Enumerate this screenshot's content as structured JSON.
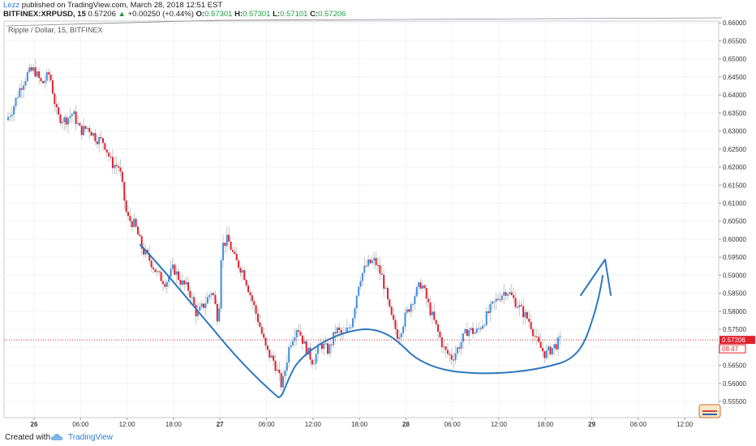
{
  "header": {
    "author": "Lezz",
    "published": " published on TradingView.com, March 28, 2018 12:51 EST",
    "symbol": "BITFINEX:XRPUSD, 15",
    "last": "0.57206",
    "change": "+0.00250 (+0.44%)",
    "o_label": "O:",
    "o_value": "0.57301",
    "h_label": "H:",
    "h_value": "0.57301",
    "l_label": "L:",
    "l_value": "0.57101",
    "c_label": "C:",
    "c_value": "0.57206"
  },
  "footer": {
    "created": "Created with",
    "brand": "TradingView"
  },
  "colors": {
    "up": "#3d8fe0",
    "down": "#e0202c",
    "drawing": "#2e78bd",
    "price_line": "#e0202c",
    "grid": "#f0f3fa",
    "axis_text": "#333333"
  },
  "chart_data": {
    "type": "candlestick",
    "title": "Ripple / Dollar, 15, BITFINEX",
    "ylim": [
      0.5505,
      0.6605
    ],
    "y_ticks": [
      "0.55500",
      "0.56000",
      "0.56500",
      "0.57000",
      "0.57500",
      "0.58000",
      "0.58500",
      "0.59000",
      "0.59500",
      "0.60000",
      "0.60500",
      "0.61000",
      "0.61500",
      "0.62000",
      "0.62500",
      "0.63000",
      "0.63500",
      "0.64000",
      "0.64500",
      "0.65000",
      "0.65500",
      "0.66000"
    ],
    "x_ticks": [
      {
        "label": "26",
        "t": 0,
        "bold": true
      },
      {
        "label": "06:00",
        "t": 6
      },
      {
        "label": "12:00",
        "t": 12
      },
      {
        "label": "18:00",
        "t": 18
      },
      {
        "label": "27",
        "t": 24,
        "bold": true
      },
      {
        "label": "06:00",
        "t": 30
      },
      {
        "label": "12:00",
        "t": 36
      },
      {
        "label": "18:00",
        "t": 42
      },
      {
        "label": "28",
        "t": 48,
        "bold": true
      },
      {
        "label": "06:00",
        "t": 54
      },
      {
        "label": "12:00",
        "t": 60
      },
      {
        "label": "18:00",
        "t": 66
      },
      {
        "label": "29",
        "t": 72,
        "bold": true
      },
      {
        "label": "06:00",
        "t": 78
      },
      {
        "label": "12:00",
        "t": 84
      }
    ],
    "last_price": "0.57206",
    "countdown": "08:47",
    "price_path": [
      [
        -3.6,
        0.633
      ],
      [
        -2.8,
        0.636
      ],
      [
        -1.8,
        0.642
      ],
      [
        -0.8,
        0.646
      ],
      [
        0,
        0.647
      ],
      [
        1,
        0.643
      ],
      [
        2,
        0.646
      ],
      [
        3,
        0.634
      ],
      [
        4,
        0.633
      ],
      [
        5,
        0.635
      ],
      [
        6,
        0.63
      ],
      [
        7,
        0.631
      ],
      [
        8,
        0.628
      ],
      [
        9,
        0.627
      ],
      [
        10,
        0.621
      ],
      [
        11,
        0.62
      ],
      [
        12,
        0.606
      ],
      [
        13,
        0.604
      ],
      [
        14,
        0.597
      ],
      [
        15,
        0.594
      ],
      [
        16,
        0.59
      ],
      [
        17,
        0.588
      ],
      [
        18,
        0.592
      ],
      [
        19,
        0.588
      ],
      [
        20,
        0.586
      ],
      [
        21,
        0.579
      ],
      [
        22,
        0.582
      ],
      [
        23,
        0.586
      ],
      [
        23.8,
        0.577
      ],
      [
        24.2,
        0.598
      ],
      [
        25,
        0.6
      ],
      [
        26,
        0.594
      ],
      [
        27,
        0.591
      ],
      [
        28,
        0.584
      ],
      [
        29,
        0.577
      ],
      [
        30,
        0.569
      ],
      [
        31,
        0.566
      ],
      [
        32,
        0.559
      ],
      [
        33,
        0.571
      ],
      [
        34,
        0.576
      ],
      [
        35,
        0.57
      ],
      [
        36,
        0.566
      ],
      [
        37,
        0.571
      ],
      [
        38,
        0.569
      ],
      [
        39,
        0.575
      ],
      [
        40,
        0.573
      ],
      [
        41,
        0.577
      ],
      [
        42,
        0.589
      ],
      [
        43,
        0.593
      ],
      [
        44,
        0.594
      ],
      [
        45,
        0.589
      ],
      [
        46,
        0.579
      ],
      [
        47,
        0.573
      ],
      [
        48,
        0.579
      ],
      [
        49,
        0.584
      ],
      [
        50,
        0.588
      ],
      [
        51,
        0.581
      ],
      [
        52,
        0.575
      ],
      [
        53,
        0.569
      ],
      [
        54,
        0.567
      ],
      [
        55,
        0.571
      ],
      [
        56,
        0.575
      ],
      [
        57,
        0.574
      ],
      [
        58,
        0.577
      ],
      [
        59,
        0.581
      ],
      [
        60,
        0.584
      ],
      [
        61,
        0.586
      ],
      [
        62,
        0.583
      ],
      [
        63,
        0.58
      ],
      [
        64,
        0.577
      ],
      [
        65,
        0.571
      ],
      [
        66,
        0.568
      ],
      [
        67,
        0.57
      ],
      [
        68,
        0.572
      ]
    ]
  }
}
